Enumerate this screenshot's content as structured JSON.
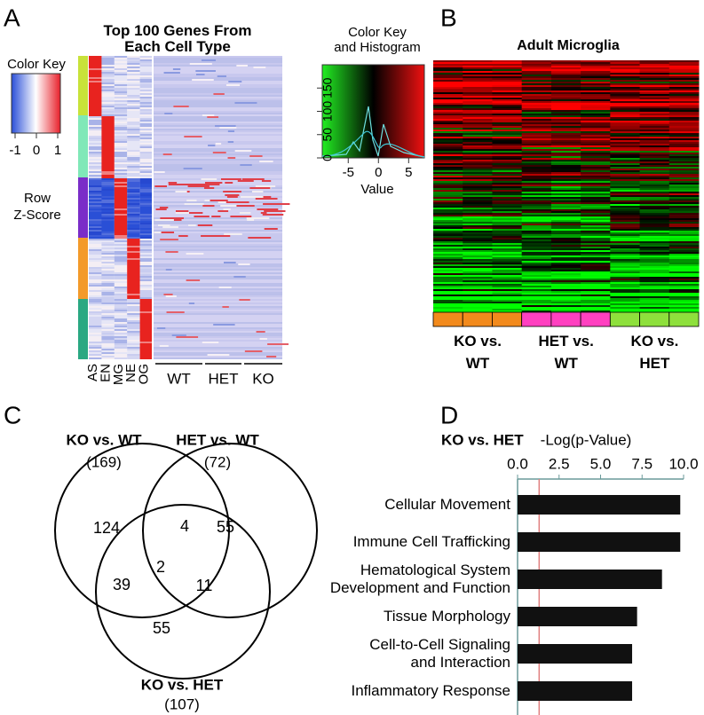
{
  "panel_labels": [
    "A",
    "B",
    "C",
    "D"
  ],
  "panel_a": {
    "title": "Top 100 Genes From\nEach Cell Type",
    "color_key": {
      "title": "Color Key",
      "ticks": [
        -1,
        0,
        1
      ],
      "label": "Row\nZ-Score"
    },
    "cell_types": [
      "AS",
      "EN",
      "MG",
      "NE",
      "OG"
    ],
    "groups": [
      "WT",
      "HET",
      "KO"
    ]
  },
  "panel_b": {
    "color_key": {
      "title": "Color Key\nand Histogram",
      "xlim": [
        -9.3,
        7.6
      ],
      "xticks": [
        -5,
        0,
        5
      ],
      "ylim": [
        0,
        200
      ],
      "yticks": [
        0,
        50,
        100,
        150
      ],
      "xlabel": "Value"
    },
    "title": "Adult Microglia",
    "groups": [
      {
        "name": "KO vs.\nWT",
        "color": "#f28a1c"
      },
      {
        "name": "HET vs.\nWT",
        "color": "#ff40c0"
      },
      {
        "name": "KO vs.\nHET",
        "color": "#8ee03c"
      }
    ]
  },
  "panel_c": {
    "sets": [
      {
        "name": "KO vs. WT",
        "total": "(169)"
      },
      {
        "name": "HET vs. WT",
        "total": "(72)"
      },
      {
        "name": "KO vs. HET",
        "total": "(107)"
      }
    ],
    "regions": {
      "ko_wt_only": 124,
      "ko_wt_and_het_wt": 4,
      "het_wt_only": 55,
      "ko_wt_and_ko_het": 39,
      "all_three": 2,
      "het_wt_and_ko_het": 11,
      "ko_het_only": 55
    }
  },
  "chart_data": {
    "type": "bar",
    "orientation": "horizontal",
    "title": "KO vs. HET",
    "xlabel": "-Log(p-Value)",
    "categories": [
      "Cellular Movement",
      "Immune Cell Trafficking",
      "Hematological System\nDevelopment and Function",
      "Tissue Morphology",
      "Cell-to-Cell Signaling\nand Interaction",
      "Inflammatory Response"
    ],
    "values": [
      9.8,
      9.8,
      8.7,
      7.2,
      6.9,
      6.9
    ],
    "color": "#111111",
    "xlim": [
      0,
      10
    ],
    "xticks": [
      {
        "value": 0,
        "label": "0.0"
      },
      {
        "value": 2.5,
        "label": "2.5"
      },
      {
        "value": 5,
        "label": "5.0"
      },
      {
        "value": 7.5,
        "label": "7.5"
      },
      {
        "value": 10,
        "label": "10.0"
      }
    ],
    "threshold": 1.3,
    "threshold_color": "#e08080"
  }
}
